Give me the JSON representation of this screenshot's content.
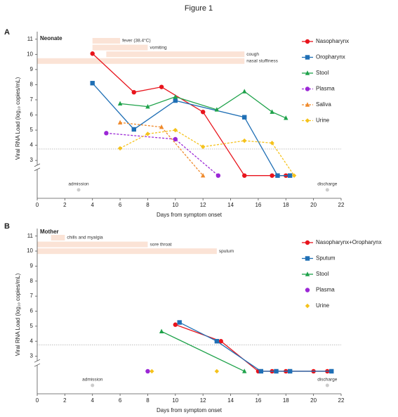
{
  "figure_title": "Figure 1",
  "chart_data": [
    {
      "type": "line",
      "panel": "A",
      "title": "Neonate",
      "xlabel": "Days from symptom onset",
      "ylabel": "Viral RNA Load (log₁₀ copies/mL)",
      "xlim": [
        0,
        22
      ],
      "xticks": [
        0,
        2,
        4,
        6,
        8,
        10,
        12,
        14,
        16,
        18,
        20,
        22
      ],
      "ylim": [
        0.5,
        11.5
      ],
      "yticks": [
        3,
        4,
        5,
        6,
        7,
        8,
        9,
        10,
        11
      ],
      "threshold": 3.75,
      "symptoms": [
        {
          "label": "fever (38.4°C)",
          "start": 4,
          "end": 6
        },
        {
          "label": "vomiting",
          "start": 4,
          "end": 8
        },
        {
          "label": "cough",
          "start": 5,
          "end": 15
        },
        {
          "label": "nasal stuffiness",
          "start": 0,
          "end": 15
        }
      ],
      "annotations": [
        {
          "text": "admission",
          "x": 3
        },
        {
          "text": "discharge",
          "x": 21
        }
      ],
      "series": [
        {
          "name": "Nasopharynx",
          "color": "#e8141c",
          "marker": "circle",
          "dashed": false,
          "line": true,
          "x": [
            4,
            7,
            9,
            12,
            15,
            17,
            18
          ],
          "values": [
            10.05,
            7.5,
            7.85,
            6.2,
            2,
            2,
            2
          ]
        },
        {
          "name": "Oropharynx",
          "color": "#1f6fb5",
          "marker": "square",
          "dashed": false,
          "line": true,
          "x": [
            4,
            7,
            10,
            15,
            17.4,
            18.3
          ],
          "values": [
            8.1,
            5.05,
            6.95,
            5.85,
            2,
            2
          ]
        },
        {
          "name": "Stool",
          "color": "#1ea24a",
          "marker": "triangle",
          "dashed": false,
          "line": true,
          "x": [
            6,
            8,
            10,
            13,
            15,
            17,
            18
          ],
          "values": [
            6.75,
            6.55,
            7.2,
            6.35,
            7.55,
            6.2,
            5.8
          ]
        },
        {
          "name": "Plasma",
          "color": "#9b27d6",
          "marker": "circle",
          "dashed": true,
          "line": true,
          "x": [
            5,
            10,
            13.1
          ],
          "values": [
            4.8,
            4.4,
            2
          ]
        },
        {
          "name": "Saliva",
          "color": "#ef8a2c",
          "marker": "triangle",
          "dashed": true,
          "line": true,
          "x": [
            6,
            9,
            12
          ],
          "values": [
            5.5,
            5.2,
            2
          ]
        },
        {
          "name": "Urine",
          "color": "#f5c21b",
          "marker": "diamond",
          "dashed": true,
          "line": true,
          "x": [
            6,
            8,
            10,
            12,
            15,
            17,
            18.6
          ],
          "values": [
            3.8,
            4.75,
            5.0,
            3.9,
            4.3,
            4.15,
            2
          ]
        }
      ]
    },
    {
      "type": "line",
      "panel": "B",
      "title": "Mother",
      "xlabel": "Days from symptom onset",
      "ylabel": "Viral RNA Load (log₁₀ copies/mL)",
      "xlim": [
        0,
        22
      ],
      "xticks": [
        0,
        2,
        4,
        6,
        8,
        10,
        12,
        14,
        16,
        18,
        20,
        22
      ],
      "ylim": [
        0.5,
        11.5
      ],
      "yticks": [
        3,
        4,
        5,
        6,
        7,
        8,
        9,
        10,
        11
      ],
      "threshold": 3.75,
      "symptoms": [
        {
          "label": "chills and myalgia",
          "start": 1,
          "end": 2
        },
        {
          "label": "sore throat",
          "start": 0,
          "end": 8
        },
        {
          "label": "sputum",
          "start": 0,
          "end": 13
        }
      ],
      "annotations": [
        {
          "text": "admission",
          "x": 4
        },
        {
          "text": "discharge",
          "x": 21
        }
      ],
      "series": [
        {
          "name": "Nasopharynx+Oropharynx",
          "color": "#e8141c",
          "marker": "circle",
          "dashed": false,
          "line": true,
          "x": [
            10,
            13.3,
            16,
            17,
            18,
            20,
            21
          ],
          "values": [
            5.1,
            4.0,
            2,
            2,
            2,
            2,
            2
          ]
        },
        {
          "name": "Sputum",
          "color": "#1f6fb5",
          "marker": "square",
          "dashed": false,
          "line": true,
          "x": [
            10.3,
            13,
            16.2,
            17.3,
            18.3,
            21.3
          ],
          "values": [
            5.25,
            4.0,
            2,
            2,
            2,
            2
          ]
        },
        {
          "name": "Stool",
          "color": "#1ea24a",
          "marker": "triangle",
          "dashed": false,
          "line": true,
          "x": [
            9,
            15
          ],
          "values": [
            4.65,
            2
          ]
        },
        {
          "name": "Plasma",
          "color": "#9b27d6",
          "marker": "circle",
          "dashed": false,
          "line": false,
          "x": [
            8
          ],
          "values": [
            2
          ]
        },
        {
          "name": "Urine",
          "color": "#f5c21b",
          "marker": "diamond",
          "dashed": false,
          "line": false,
          "x": [
            8.3,
            13
          ],
          "values": [
            2,
            2
          ]
        }
      ]
    }
  ]
}
